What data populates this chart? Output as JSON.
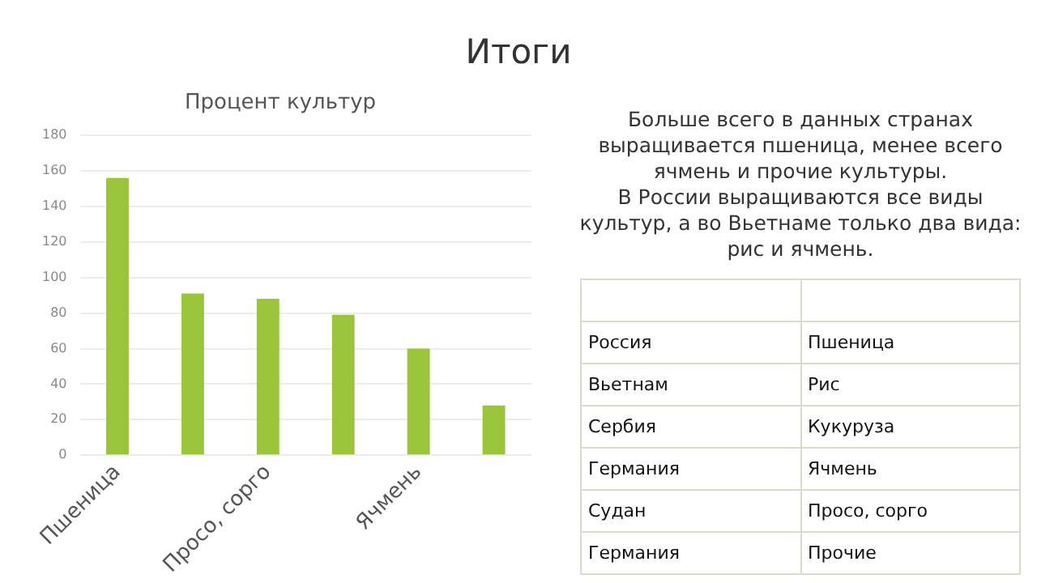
{
  "chart_data": {
    "type": "bar",
    "title": "Итоги",
    "subtitle": "Процент культур",
    "categories": [
      "Пшеница",
      null,
      "Просо, сорго",
      null,
      "Ячмень",
      null
    ],
    "values": [
      156,
      91,
      88,
      79,
      60,
      28
    ],
    "color": "#9ac43a",
    "ylim": [
      0,
      180
    ],
    "yticks": [
      0,
      20,
      40,
      60,
      80,
      100,
      120,
      140,
      160,
      180
    ],
    "grid": "y",
    "annotations": [
      "Больше всего в данных странах выращивается пшеница, менее всего ячмень и прочие культуры.",
      "В России выращиваются все виды культур, а во Вьетнаме только два вида: рис и ячмень.",
      "Россия",
      "Пшеница",
      "Вьетнам",
      "Рис",
      "Сербия",
      "Кукуруза",
      "Германия",
      "Ячмень",
      "Судан",
      "Просо, сорго",
      "Германия",
      "Прочие"
    ]
  }
}
